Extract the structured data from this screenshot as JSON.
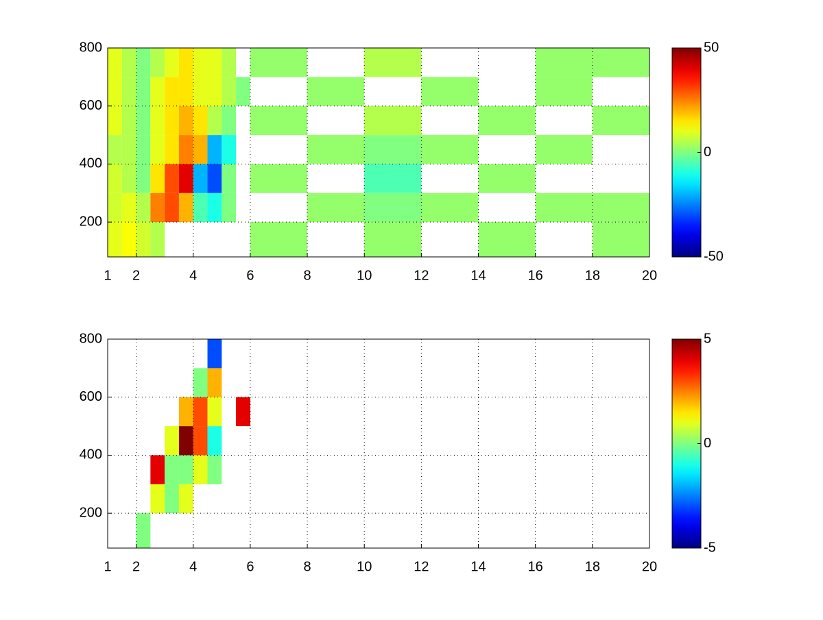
{
  "chart_data": [
    {
      "type": "heatmap",
      "colormap": "jet",
      "grid": true,
      "x_edges": [
        1,
        1.5,
        2,
        2.5,
        3,
        3.5,
        4,
        4.5,
        5,
        5.5,
        6,
        8,
        10,
        12,
        14,
        16,
        18,
        20
      ],
      "y_edges": [
        80,
        200,
        300,
        400,
        500,
        600,
        700,
        800
      ],
      "z": [
        [
          10,
          12,
          8,
          5,
          null,
          null,
          null,
          null,
          null,
          null,
          2,
          null,
          2,
          null,
          2,
          null,
          2
        ],
        [
          8,
          10,
          5,
          25,
          30,
          20,
          -5,
          -10,
          0,
          null,
          null,
          2,
          0,
          2,
          null,
          2,
          2
        ],
        [
          8,
          5,
          0,
          15,
          30,
          40,
          -20,
          -30,
          0,
          null,
          2,
          null,
          -5,
          null,
          2,
          null,
          null
        ],
        [
          5,
          5,
          0,
          10,
          15,
          25,
          20,
          -20,
          -10,
          null,
          null,
          2,
          0,
          2,
          null,
          2,
          null
        ],
        [
          10,
          5,
          0,
          10,
          15,
          20,
          15,
          5,
          0,
          null,
          2,
          null,
          5,
          null,
          2,
          null,
          2
        ],
        [
          10,
          5,
          0,
          10,
          15,
          15,
          10,
          10,
          5,
          0,
          null,
          2,
          null,
          2,
          null,
          2,
          null
        ],
        [
          10,
          5,
          0,
          5,
          10,
          15,
          10,
          10,
          5,
          null,
          2,
          null,
          5,
          null,
          null,
          2,
          2
        ]
      ],
      "xlim": [
        1,
        20
      ],
      "ylim": [
        80,
        800
      ],
      "xticks": [
        1,
        2,
        4,
        6,
        8,
        10,
        12,
        14,
        16,
        18,
        20
      ],
      "yticks": [
        200,
        400,
        600,
        800
      ],
      "clim": [
        -50,
        50
      ],
      "cticks": [
        -50,
        0,
        50
      ]
    },
    {
      "type": "heatmap",
      "colormap": "jet",
      "grid": true,
      "x_edges": [
        1,
        1.5,
        2,
        2.5,
        3,
        3.5,
        4,
        4.5,
        5,
        5.5,
        6,
        8,
        10,
        12,
        14,
        16,
        18,
        20
      ],
      "y_edges": [
        80,
        200,
        300,
        400,
        500,
        600,
        700,
        800
      ],
      "z": [
        [
          null,
          null,
          0,
          null,
          null,
          null,
          null,
          null,
          null,
          null,
          null,
          null,
          null,
          null,
          null,
          null,
          null
        ],
        [
          null,
          null,
          null,
          1,
          0,
          1,
          null,
          null,
          null,
          null,
          null,
          null,
          null,
          null,
          null,
          null,
          null
        ],
        [
          null,
          null,
          null,
          4,
          0,
          0,
          1,
          0,
          null,
          null,
          null,
          null,
          null,
          null,
          null,
          null,
          null
        ],
        [
          null,
          null,
          null,
          null,
          1,
          5,
          3,
          -1,
          null,
          null,
          null,
          null,
          null,
          null,
          null,
          null,
          null
        ],
        [
          null,
          null,
          null,
          null,
          null,
          2,
          3,
          1,
          null,
          4,
          null,
          null,
          null,
          null,
          null,
          null,
          null
        ],
        [
          null,
          null,
          null,
          null,
          null,
          null,
          0,
          2,
          null,
          null,
          null,
          null,
          null,
          null,
          null,
          null,
          null
        ],
        [
          null,
          null,
          null,
          null,
          null,
          null,
          null,
          -3,
          null,
          null,
          null,
          null,
          null,
          null,
          null,
          null,
          null
        ]
      ],
      "xlim": [
        1,
        20
      ],
      "ylim": [
        80,
        800
      ],
      "xticks": [
        1,
        2,
        4,
        6,
        8,
        10,
        12,
        14,
        16,
        18,
        20
      ],
      "yticks": [
        200,
        400,
        600,
        800
      ],
      "clim": [
        -5,
        5
      ],
      "cticks": [
        -5,
        0,
        5
      ]
    }
  ]
}
